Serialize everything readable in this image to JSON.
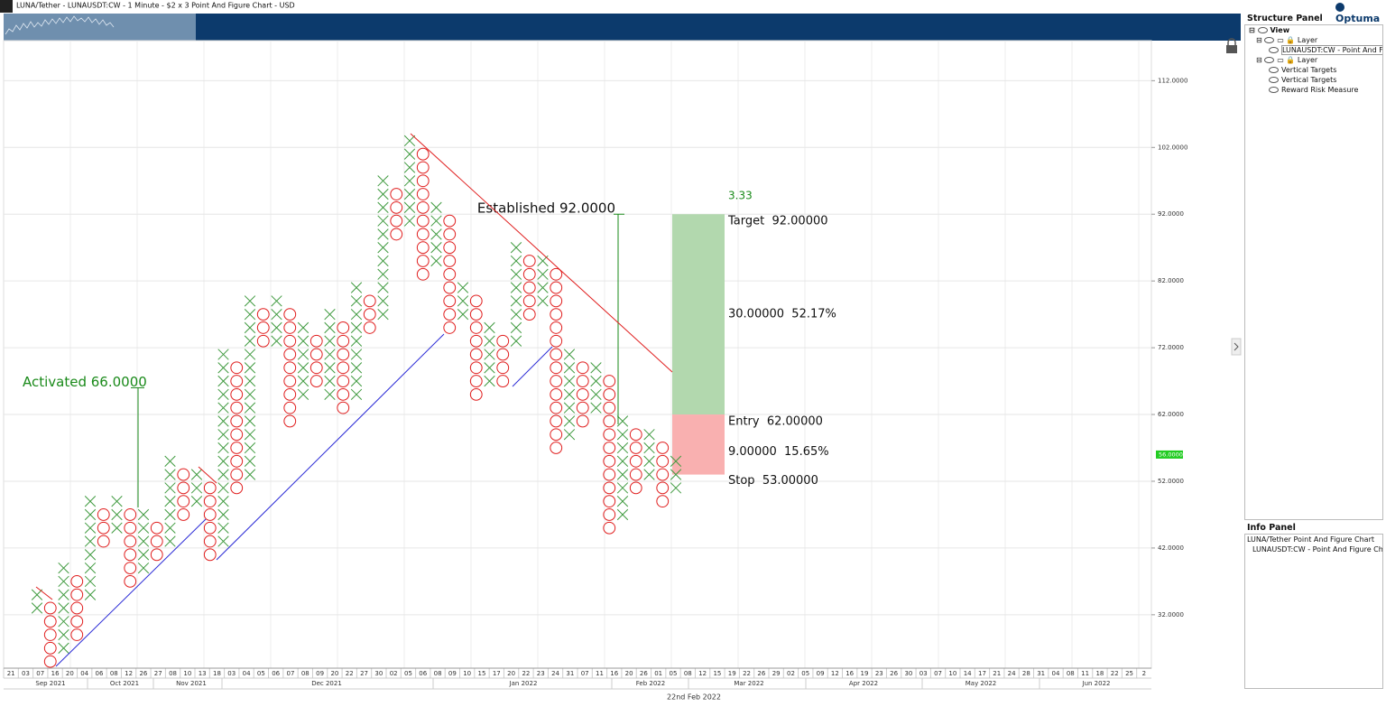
{
  "chart_data": {
    "type": "point_and_figure",
    "title": "LUNA/Tether - LUNAUSDT:CW - 1 Minute - $2 x 3 Point And Figure Chart - USD",
    "box_size": 2,
    "colors": {
      "X": "#3f9a3f",
      "O": "#e01e1e"
    },
    "grid": true,
    "columns": [
      {
        "type": "X",
        "low": 32,
        "high": 36
      },
      {
        "type": "O",
        "low": 24,
        "high": 34
      },
      {
        "type": "X",
        "low": 26,
        "high": 40
      },
      {
        "type": "O",
        "low": 28,
        "high": 38
      },
      {
        "type": "X",
        "low": 34,
        "high": 50
      },
      {
        "type": "O",
        "low": 42,
        "high": 48
      },
      {
        "type": "X",
        "low": 44,
        "high": 50
      },
      {
        "type": "O",
        "low": 36,
        "high": 48
      },
      {
        "type": "X",
        "low": 38,
        "high": 48
      },
      {
        "type": "O",
        "low": 40,
        "high": 46
      },
      {
        "type": "X",
        "low": 42,
        "high": 56
      },
      {
        "type": "O",
        "low": 46,
        "high": 54
      },
      {
        "type": "X",
        "low": 48,
        "high": 54
      },
      {
        "type": "O",
        "low": 40,
        "high": 52
      },
      {
        "type": "X",
        "low": 42,
        "high": 72
      },
      {
        "type": "O",
        "low": 50,
        "high": 70
      },
      {
        "type": "X",
        "low": 52,
        "high": 80
      },
      {
        "type": "O",
        "low": 72,
        "high": 78
      },
      {
        "type": "X",
        "low": 72,
        "high": 80
      },
      {
        "type": "O",
        "low": 60,
        "high": 78
      },
      {
        "type": "X",
        "low": 64,
        "high": 76
      },
      {
        "type": "O",
        "low": 66,
        "high": 74
      },
      {
        "type": "X",
        "low": 64,
        "high": 78
      },
      {
        "type": "O",
        "low": 62,
        "high": 76
      },
      {
        "type": "X",
        "low": 64,
        "high": 82
      },
      {
        "type": "O",
        "low": 74,
        "high": 80
      },
      {
        "type": "X",
        "low": 76,
        "high": 98
      },
      {
        "type": "O",
        "low": 88,
        "high": 96
      },
      {
        "type": "X",
        "low": 90,
        "high": 104
      },
      {
        "type": "O",
        "low": 82,
        "high": 102
      },
      {
        "type": "X",
        "low": 84,
        "high": 94
      },
      {
        "type": "O",
        "low": 74,
        "high": 92
      },
      {
        "type": "X",
        "low": 76,
        "high": 82
      },
      {
        "type": "O",
        "low": 64,
        "high": 80
      },
      {
        "type": "X",
        "low": 66,
        "high": 76
      },
      {
        "type": "O",
        "low": 66,
        "high": 74
      },
      {
        "type": "X",
        "low": 72,
        "high": 88
      },
      {
        "type": "O",
        "low": 76,
        "high": 86
      },
      {
        "type": "X",
        "low": 78,
        "high": 86
      },
      {
        "type": "O",
        "low": 56,
        "high": 84
      },
      {
        "type": "X",
        "low": 58,
        "high": 72
      },
      {
        "type": "O",
        "low": 60,
        "high": 70
      },
      {
        "type": "X",
        "low": 62,
        "high": 70
      },
      {
        "type": "O",
        "low": 44,
        "high": 68
      },
      {
        "type": "X",
        "low": 46,
        "high": 62
      },
      {
        "type": "O",
        "low": 50,
        "high": 60
      },
      {
        "type": "X",
        "low": 52,
        "high": 60
      },
      {
        "type": "O",
        "low": 48,
        "high": 58
      },
      {
        "type": "X",
        "low": 50,
        "high": 56
      }
    ],
    "ylim": [
      24,
      118
    ],
    "yticks": [
      {
        "value": 32,
        "label": "32.0000"
      },
      {
        "value": 42,
        "label": "42.0000"
      },
      {
        "value": 52,
        "label": "52.0000"
      },
      {
        "value": 62,
        "label": "62.0000"
      },
      {
        "value": 72,
        "label": "72.0000"
      },
      {
        "value": 82,
        "label": "82.0000"
      },
      {
        "value": 92,
        "label": "92.0000"
      },
      {
        "value": 102,
        "label": "102.0000"
      },
      {
        "value": 112,
        "label": "112.0000"
      }
    ],
    "day_labels": [
      "21",
      "03",
      "07",
      "16",
      "20",
      "04",
      "06",
      "08",
      "12",
      "26",
      "27",
      "08",
      "10",
      "13",
      "18",
      "03",
      "04",
      "05",
      "06",
      "07",
      "08",
      "09",
      "20",
      "22",
      "27",
      "30",
      "02",
      "05",
      "06",
      "08",
      "09",
      "10",
      "15",
      "17",
      "20",
      "22",
      "23",
      "24",
      "31",
      "07",
      "11",
      "16",
      "20",
      "26",
      "01",
      "05",
      "08",
      "12",
      "15",
      "19",
      "22",
      "26",
      "29",
      "02",
      "05",
      "09",
      "12",
      "16",
      "19",
      "23",
      "26",
      "30",
      "03",
      "07",
      "10",
      "14",
      "17",
      "21",
      "24",
      "28",
      "31",
      "04",
      "08",
      "11",
      "18",
      "22",
      "25",
      "2"
    ],
    "month_labels": [
      "Sep 2021",
      "Oct 2021",
      "Nov 2021",
      "Dec 2021",
      "Jan 2022",
      "Feb 2022",
      "Mar 2022",
      "Apr 2022",
      "May 2022",
      "Jun 2022"
    ],
    "date_label": "22nd Feb 2022",
    "last_price": {
      "value": 56,
      "label": "56.0000"
    },
    "annotations": [
      {
        "text": "Activated 66.0000",
        "value": 66,
        "color": "#1a8a1a"
      },
      {
        "text": "Established 92.0000",
        "value": 92,
        "color": "#111111"
      }
    ],
    "reward_risk": {
      "ratio": 3.33,
      "target": {
        "value": 92,
        "label": "Target  92.00000"
      },
      "entry": {
        "value": 62,
        "label": "Entry  62.00000"
      },
      "stop": {
        "value": 53,
        "label": "Stop  53.00000"
      },
      "reward_label": "30.00000  52.17%",
      "risk_label": "9.00000  15.65%"
    }
  },
  "logo": "Optuma",
  "structure_panel": {
    "title": "Structure Panel",
    "items": [
      "View",
      "Layer",
      "LUNAUSDT:CW - Point And Figure Chart",
      "Layer",
      "Vertical Targets",
      "Vertical Targets",
      "Reward Risk Measure"
    ]
  },
  "info_panel": {
    "title": "Info Panel",
    "items": [
      "LUNA/Tether Point And Figure Chart",
      "LUNAUSDT:CW - Point And Figure Chart"
    ]
  }
}
